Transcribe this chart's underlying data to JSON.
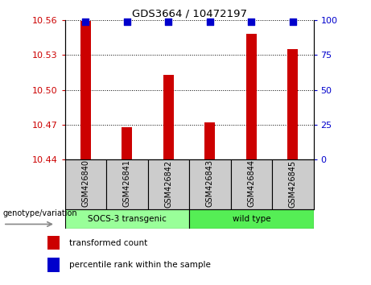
{
  "title": "GDS3664 / 10472197",
  "samples": [
    "GSM426840",
    "GSM426841",
    "GSM426842",
    "GSM426843",
    "GSM426844",
    "GSM426845"
  ],
  "bar_values": [
    10.559,
    10.468,
    10.513,
    10.472,
    10.548,
    10.535
  ],
  "percentile_values": [
    99,
    99,
    99,
    99,
    99,
    99
  ],
  "ylim_left": [
    10.44,
    10.56
  ],
  "ylim_right": [
    0,
    100
  ],
  "yticks_left": [
    10.44,
    10.47,
    10.5,
    10.53,
    10.56
  ],
  "yticks_right": [
    0,
    25,
    50,
    75,
    100
  ],
  "ytick_labels_left": [
    "10.44",
    "10.47",
    "10.50",
    "10.53",
    "10.56"
  ],
  "ytick_labels_right": [
    "0",
    "25",
    "50",
    "75",
    "100"
  ],
  "bar_color": "#cc0000",
  "dot_color": "#0000cc",
  "groups": [
    {
      "label": "SOCS-3 transgenic",
      "indices": [
        0,
        1,
        2
      ],
      "color": "#99ff99"
    },
    {
      "label": "wild type",
      "indices": [
        3,
        4,
        5
      ],
      "color": "#55ee55"
    }
  ],
  "group_label": "genotype/variation",
  "legend_bar_label": "transformed count",
  "legend_dot_label": "percentile rank within the sample",
  "bar_color_legend": "#cc0000",
  "dot_color_legend": "#0000cc",
  "tick_label_color_left": "#cc0000",
  "tick_label_color_right": "#0000cc",
  "bar_width": 0.25,
  "dot_size": 30,
  "label_area_color": "#cccccc"
}
